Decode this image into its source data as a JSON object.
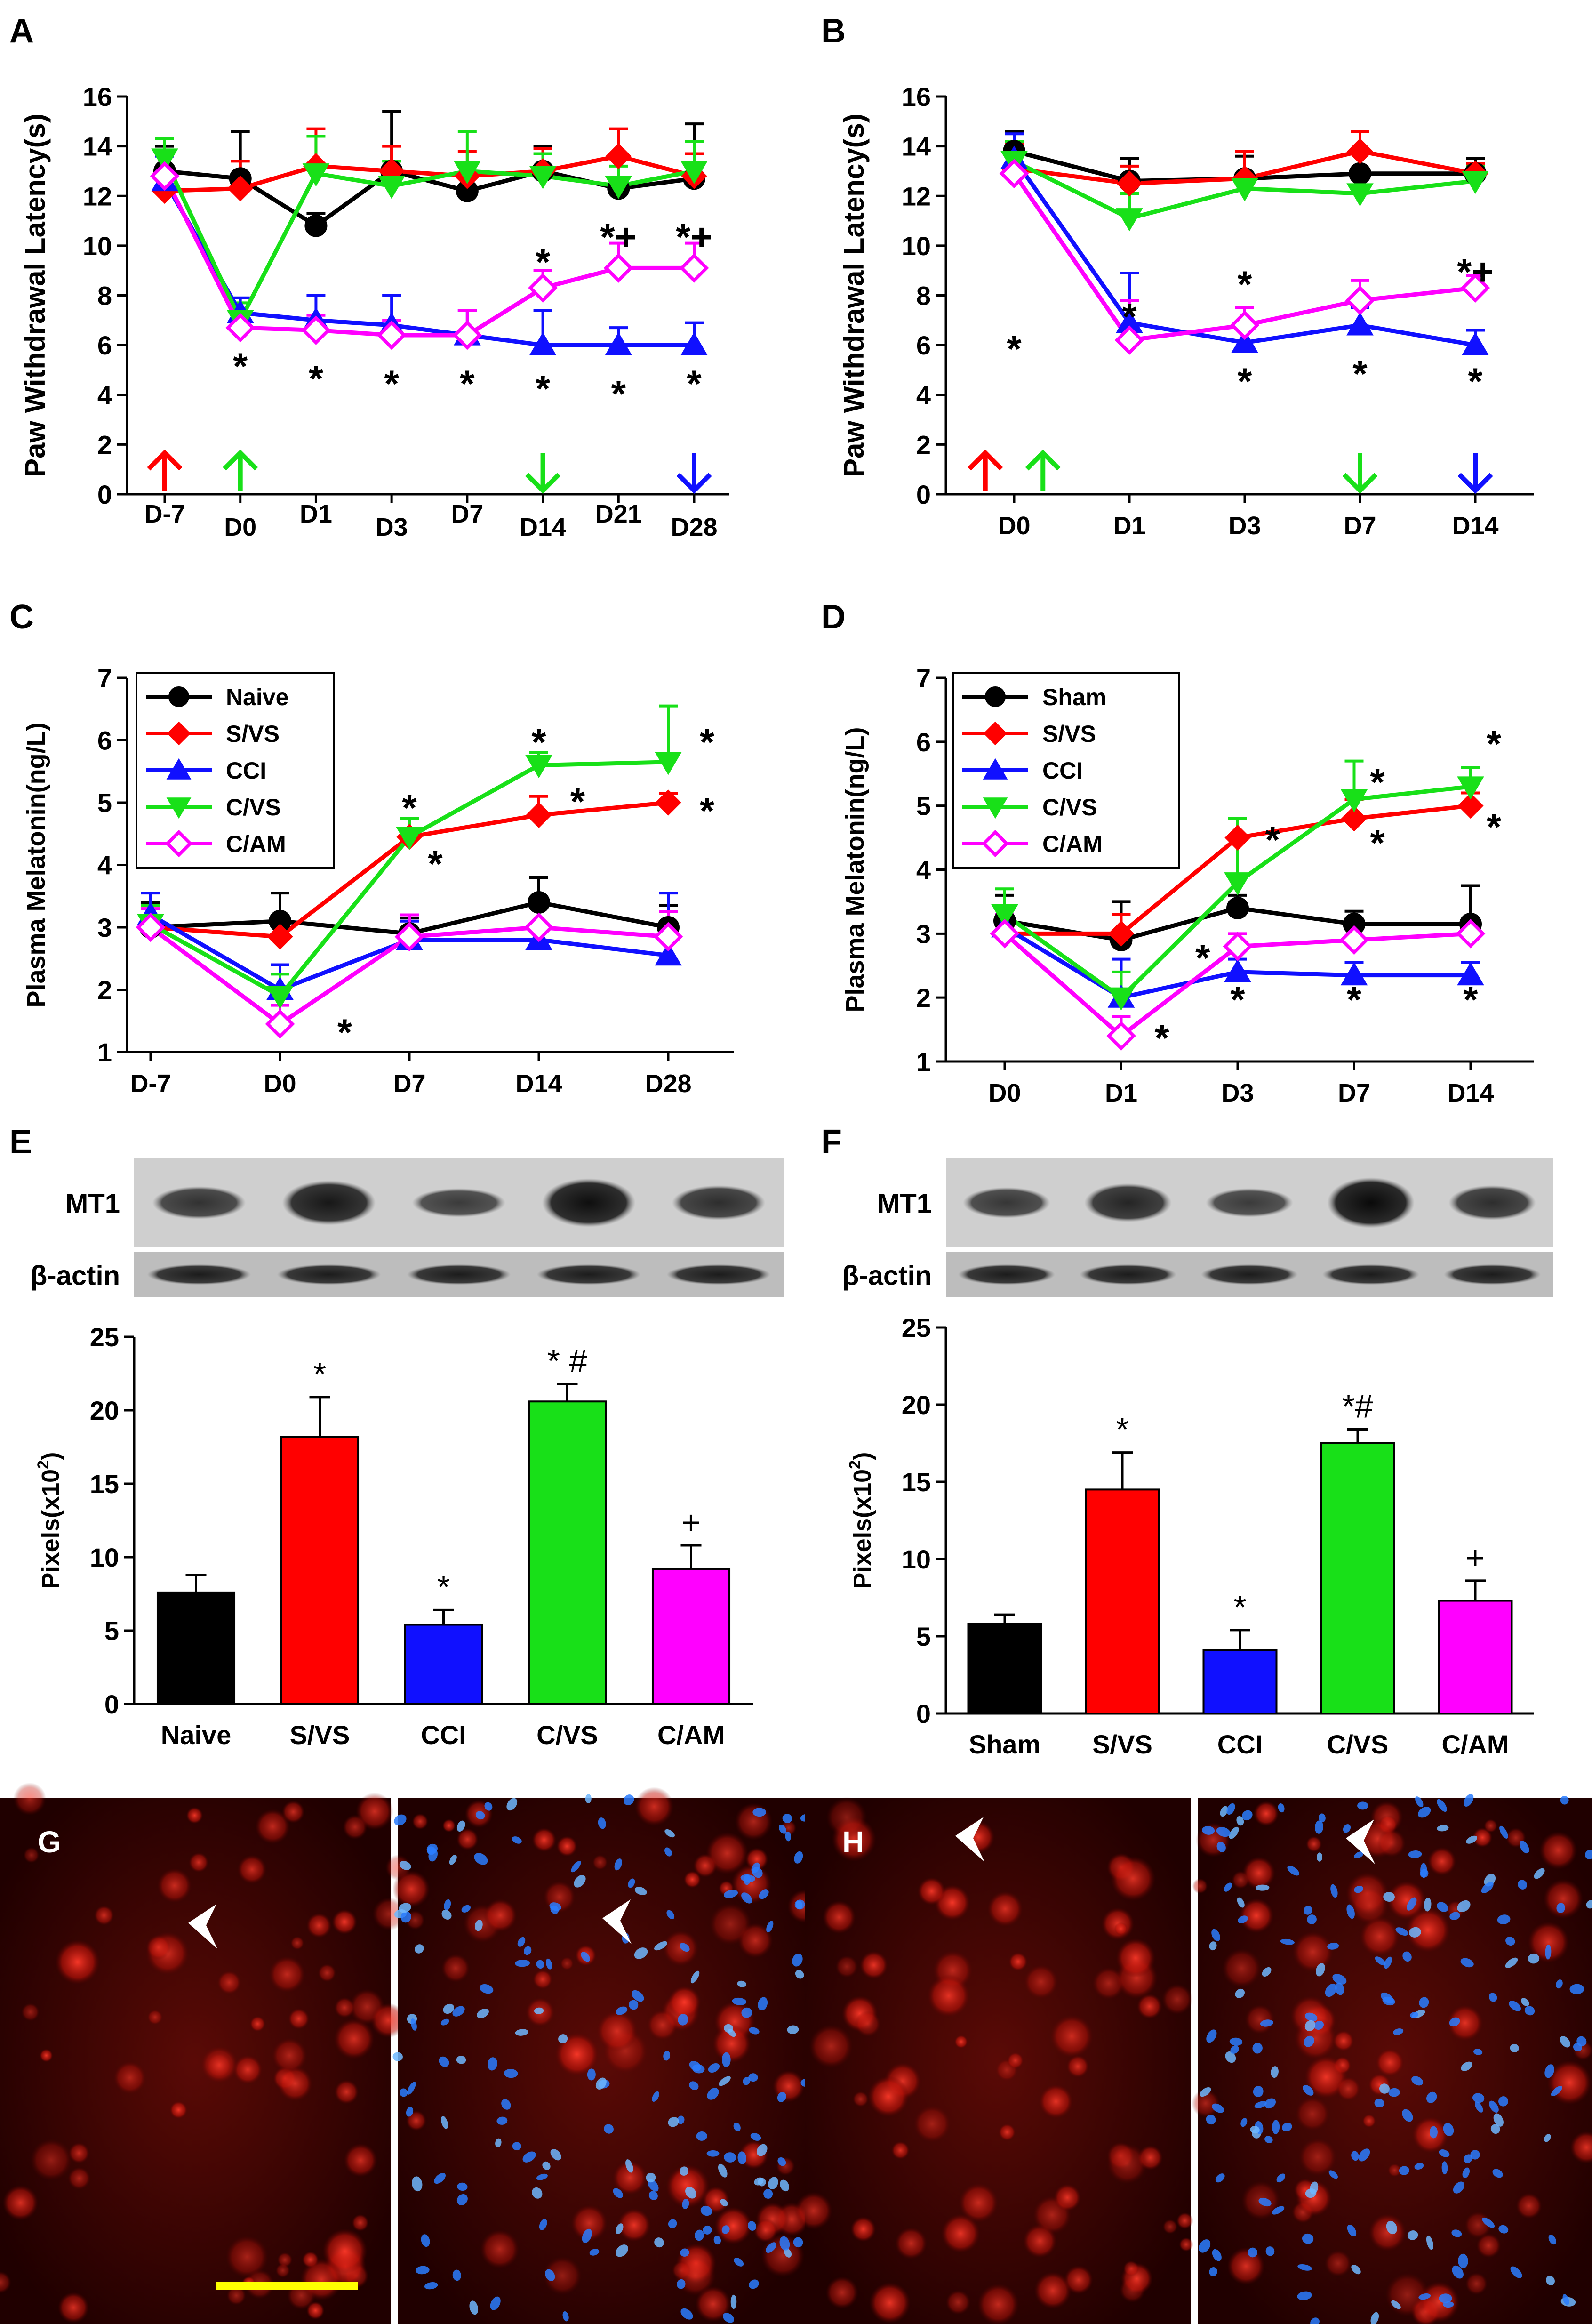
{
  "figure": {
    "colors": {
      "Naive": "#000000",
      "Sham": "#000000",
      "S/VS": "#ff0000",
      "CCI": "#1010ff",
      "C/VS": "#18e018",
      "C/AM": "#ff00ff",
      "scale_bar": "#ffff00"
    },
    "series_colors": [
      "#000000",
      "#ff0000",
      "#1010ff",
      "#18e018",
      "#ff00ff"
    ],
    "series_markers": [
      "circle",
      "diamond",
      "triangle",
      "triangle-down",
      "diamond-open"
    ]
  },
  "chart_data": [
    {
      "panel": "A",
      "type": "line",
      "ylabel": "Paw Withdrawal Latency(s)",
      "xlabel": "",
      "ylim": [
        0,
        16
      ],
      "yticks": [
        "0",
        "2",
        "4",
        "6",
        "8",
        "10",
        "12",
        "14",
        "16"
      ],
      "categories": [
        "D-7",
        "D0",
        "D1",
        "D3",
        "D7",
        "D14",
        "D21",
        "D28"
      ],
      "series": [
        {
          "name": "Naive",
          "values": [
            13.0,
            12.7,
            10.8,
            13.0,
            12.2,
            13.0,
            12.3,
            12.7
          ],
          "err": [
            1.0,
            1.9,
            0.5,
            2.4,
            0.6,
            1.0,
            0.4,
            2.2
          ]
        },
        {
          "name": "S/VS",
          "values": [
            12.2,
            12.3,
            13.2,
            13.0,
            12.8,
            13.0,
            13.6,
            12.8
          ],
          "err": [
            0.6,
            1.1,
            1.5,
            1.0,
            1.0,
            0.9,
            1.1,
            0.9
          ]
        },
        {
          "name": "CCI",
          "values": [
            12.6,
            7.3,
            7.0,
            6.8,
            6.4,
            6.0,
            6.0,
            6.0
          ],
          "err": [
            1.0,
            0.6,
            1.0,
            1.2,
            1.0,
            1.4,
            0.7,
            0.9
          ]
        },
        {
          "name": "C/VS",
          "values": [
            13.5,
            7.0,
            12.9,
            12.4,
            13.0,
            12.8,
            12.4,
            13.0
          ],
          "err": [
            0.8,
            0.7,
            1.5,
            1.0,
            1.6,
            0.9,
            0.8,
            1.2
          ]
        },
        {
          "name": "C/AM",
          "values": [
            12.8,
            6.7,
            6.6,
            6.4,
            6.4,
            8.3,
            9.1,
            9.1
          ],
          "err": [
            0.9,
            0.4,
            0.6,
            0.6,
            1.0,
            0.7,
            1.0,
            1.0
          ]
        }
      ],
      "annotations": [
        {
          "text": "*",
          "cat": 1,
          "y": 5.1
        },
        {
          "text": "*",
          "cat": 2,
          "y": 4.6
        },
        {
          "text": "*",
          "cat": 3,
          "y": 4.4
        },
        {
          "text": "*",
          "cat": 4,
          "y": 4.4
        },
        {
          "text": "*",
          "cat": 5,
          "y": 4.2
        },
        {
          "text": "*",
          "cat": 6,
          "y": 4.0
        },
        {
          "text": "*",
          "cat": 7,
          "y": 4.4
        },
        {
          "text": "*",
          "cat": 5,
          "y": 9.3
        },
        {
          "text": "*+",
          "cat": 6,
          "y": 10.3
        },
        {
          "text": "*+",
          "cat": 7,
          "y": 10.3
        }
      ],
      "arrows": [
        {
          "cat": 0,
          "dir": "up",
          "color": "#ff0000"
        },
        {
          "cat": 1,
          "dir": "up",
          "color": "#18e018"
        },
        {
          "cat": 5,
          "dir": "down",
          "color": "#18e018"
        },
        {
          "cat": 7,
          "dir": "down",
          "color": "#1010ff"
        }
      ]
    },
    {
      "panel": "B",
      "type": "line",
      "ylabel": "Paw Withdrawal Latency(s)",
      "xlabel": "",
      "ylim": [
        0,
        16
      ],
      "yticks": [
        "0",
        "2",
        "4",
        "6",
        "8",
        "10",
        "12",
        "14",
        "16"
      ],
      "categories": [
        "D0",
        "D1",
        "D3",
        "D7",
        "D14"
      ],
      "series": [
        {
          "name": "Sham",
          "values": [
            13.8,
            12.6,
            12.7,
            12.9,
            12.9
          ],
          "err": [
            0.8,
            0.9,
            0.9,
            0.8,
            0.6
          ]
        },
        {
          "name": "S/VS",
          "values": [
            13.1,
            12.5,
            12.7,
            13.8,
            12.9
          ],
          "err": [
            1.0,
            0.7,
            1.1,
            0.8,
            0.4
          ]
        },
        {
          "name": "CCI",
          "values": [
            13.5,
            6.9,
            6.1,
            6.8,
            6.0
          ],
          "err": [
            1.0,
            2.0,
            0.6,
            0.7,
            0.6
          ]
        },
        {
          "name": "C/VS",
          "values": [
            13.4,
            11.1,
            12.3,
            12.1,
            12.6
          ],
          "err": [
            0.8,
            1.0,
            0.5,
            0.6,
            0.6
          ]
        },
        {
          "name": "C/AM",
          "values": [
            12.9,
            6.2,
            6.8,
            7.8,
            8.3
          ],
          "err": [
            1.0,
            1.6,
            0.7,
            0.8,
            0.5
          ]
        }
      ],
      "annotations": [
        {
          "text": "*",
          "cat": 1,
          "y": 5.8,
          "dx": -1
        },
        {
          "text": "*",
          "cat": 2,
          "y": 7.1,
          "dx": -1
        },
        {
          "text": "*",
          "cat": 2,
          "y": 4.5
        },
        {
          "text": "*",
          "cat": 3,
          "y": 8.4,
          "dx": -1
        },
        {
          "text": "*",
          "cat": 3,
          "y": 4.8
        },
        {
          "text": "*+",
          "cat": 4,
          "y": 8.9
        },
        {
          "text": "*",
          "cat": 4,
          "y": 4.5
        }
      ],
      "arrows": [
        {
          "cat": 0,
          "dx": -0.25,
          "dir": "up",
          "color": "#ff0000"
        },
        {
          "cat": 0,
          "dx": 0.25,
          "dir": "up",
          "color": "#18e018"
        },
        {
          "cat": 3,
          "dir": "down",
          "color": "#18e018"
        },
        {
          "cat": 4,
          "dir": "down",
          "color": "#1010ff"
        }
      ]
    },
    {
      "panel": "C",
      "type": "line",
      "ylabel": "Plasma Melatonin(ng/L)",
      "xlabel": "",
      "ylim": [
        1,
        7
      ],
      "yticks": [
        "1",
        "2",
        "3",
        "4",
        "5",
        "6",
        "7"
      ],
      "categories": [
        "D-7",
        "D0",
        "D7",
        "D14",
        "D28"
      ],
      "legend": [
        "Naive",
        "S/VS",
        "CCI",
        "C/VS",
        "C/AM"
      ],
      "series": [
        {
          "name": "Naive",
          "values": [
            3.0,
            3.1,
            2.9,
            3.4,
            3.0
          ],
          "err": [
            0.4,
            0.45,
            0.25,
            0.4,
            0.35
          ]
        },
        {
          "name": "S/VS",
          "values": [
            3.0,
            2.85,
            4.45,
            4.8,
            5.0
          ],
          "err": [
            0.3,
            0.3,
            0.3,
            0.3,
            0.15
          ]
        },
        {
          "name": "CCI",
          "values": [
            3.2,
            2.0,
            2.8,
            2.8,
            2.55
          ],
          "err": [
            0.35,
            0.4,
            0.3,
            0.2,
            1.0
          ]
        },
        {
          "name": "C/VS",
          "values": [
            3.05,
            1.9,
            4.45,
            5.6,
            5.65
          ],
          "err": [
            0.3,
            0.35,
            0.3,
            0.2,
            0.9
          ]
        },
        {
          "name": "C/AM",
          "values": [
            3.0,
            1.45,
            2.85,
            3.0,
            2.85
          ],
          "err": [
            0.3,
            0.3,
            0.35,
            0.4,
            0.4
          ]
        }
      ],
      "annotations": [
        {
          "text": "*",
          "cat": 1,
          "y": 1.3,
          "dx": 0.5
        },
        {
          "text": "*",
          "cat": 2,
          "y": 4.9
        },
        {
          "text": "*",
          "cat": 2,
          "y": 4.0,
          "dx": 0.2
        },
        {
          "text": "*",
          "cat": 3,
          "y": 5.95
        },
        {
          "text": "*",
          "cat": 3,
          "y": 5.0,
          "dx": 0.3
        },
        {
          "text": "*",
          "cat": 4,
          "y": 5.95,
          "dx": 0.3
        },
        {
          "text": "*",
          "cat": 4,
          "y": 4.85,
          "dx": 0.3
        }
      ]
    },
    {
      "panel": "D",
      "type": "line",
      "ylabel": "Plasma Melatonin(ng/L)",
      "xlabel": "",
      "ylim": [
        1,
        7
      ],
      "yticks": [
        "1",
        "2",
        "3",
        "4",
        "5",
        "6",
        "7"
      ],
      "categories": [
        "D0",
        "D1",
        "D3",
        "D7",
        "D14"
      ],
      "legend": [
        "Sham",
        "S/VS",
        "CCI",
        "C/VS",
        "C/AM"
      ],
      "series": [
        {
          "name": "Sham",
          "values": [
            3.2,
            2.9,
            3.4,
            3.15,
            3.15
          ],
          "err": [
            0.4,
            0.6,
            0.2,
            0.2,
            0.6
          ]
        },
        {
          "name": "S/VS",
          "values": [
            3.0,
            3.0,
            4.5,
            4.8,
            5.0
          ],
          "err": [
            0.3,
            0.3,
            0.3,
            0.3,
            0.2
          ]
        },
        {
          "name": "CCI",
          "values": [
            3.1,
            2.0,
            2.4,
            2.35,
            2.35
          ],
          "err": [
            0.3,
            0.6,
            0.2,
            0.2,
            0.2
          ]
        },
        {
          "name": "C/VS",
          "values": [
            3.3,
            2.0,
            3.8,
            5.1,
            5.3
          ],
          "err": [
            0.4,
            0.4,
            1.0,
            0.6,
            0.3
          ]
        },
        {
          "name": "C/AM",
          "values": [
            3.0,
            1.4,
            2.8,
            2.9,
            3.0
          ],
          "err": [
            0.3,
            0.3,
            0.2,
            0.3,
            0.2
          ]
        }
      ],
      "annotations": [
        {
          "text": "*",
          "cat": 1,
          "y": 1.35,
          "dx": 0.35
        },
        {
          "text": "*",
          "cat": 2,
          "y": 4.45,
          "dx": 0.3
        },
        {
          "text": "*",
          "cat": 2,
          "y": 2.6,
          "dx": -0.3
        },
        {
          "text": "*",
          "cat": 2,
          "y": 1.95
        },
        {
          "text": "*",
          "cat": 3,
          "y": 5.35,
          "dx": 0.2
        },
        {
          "text": "*",
          "cat": 3,
          "y": 4.4,
          "dx": 0.2
        },
        {
          "text": "*",
          "cat": 3,
          "y": 1.95
        },
        {
          "text": "*",
          "cat": 4,
          "y": 5.95,
          "dx": 0.2
        },
        {
          "text": "*",
          "cat": 4,
          "y": 4.65,
          "dx": 0.2
        },
        {
          "text": "*",
          "cat": 4,
          "y": 1.95
        }
      ]
    },
    {
      "panel": "E",
      "type": "bar",
      "ylabel": "Pixels(x10²)",
      "ylabel_main": "Pixels(x10",
      "ylabel_sup": "2",
      "ylabel_end": ")",
      "ylim": [
        0,
        25
      ],
      "yticks": [
        "0",
        "5",
        "10",
        "15",
        "20",
        "25"
      ],
      "categories": [
        "Naive",
        "S/VS",
        "CCI",
        "C/VS",
        "C/AM"
      ],
      "values": [
        7.6,
        18.2,
        5.4,
        20.6,
        9.2
      ],
      "err": [
        1.2,
        2.7,
        1.0,
        1.2,
        1.6
      ],
      "bar_labels": [
        "",
        "*",
        "*",
        "* #",
        "+"
      ],
      "blot_labels": [
        "MT1",
        "β-actin"
      ],
      "mt1_band_intensity": [
        0.55,
        0.85,
        0.45,
        0.95,
        0.6
      ]
    },
    {
      "panel": "F",
      "type": "bar",
      "ylabel": "Pixels(x10²)",
      "ylabel_main": "Pixels(x10",
      "ylabel_sup": "2",
      "ylabel_end": ")",
      "ylim": [
        0,
        25
      ],
      "yticks": [
        "0",
        "5",
        "10",
        "15",
        "20",
        "25"
      ],
      "categories": [
        "Sham",
        "S/VS",
        "CCI",
        "C/VS",
        "C/AM"
      ],
      "values": [
        5.8,
        14.5,
        4.1,
        17.5,
        7.3
      ],
      "err": [
        0.6,
        2.4,
        1.3,
        0.9,
        1.3
      ],
      "bar_labels": [
        "",
        "*",
        "*",
        "*#",
        "+"
      ],
      "blot_labels": [
        "MT1",
        "β-actin"
      ],
      "mt1_band_intensity": [
        0.5,
        0.7,
        0.45,
        1.0,
        0.6
      ]
    }
  ],
  "panels": {
    "A": "A",
    "B": "B",
    "C": "C",
    "D": "D",
    "E": "E",
    "F": "F",
    "G": "G",
    "H": "H"
  },
  "micrographs": [
    {
      "panel": "G",
      "stain": "MT1 (red)",
      "merge": "MT1 + nuclei (blue)",
      "scale_bar": true
    },
    {
      "panel": "H",
      "stain": "MT1 (red)",
      "merge": "MT1 + nuclei (blue)",
      "scale_bar": false
    }
  ]
}
